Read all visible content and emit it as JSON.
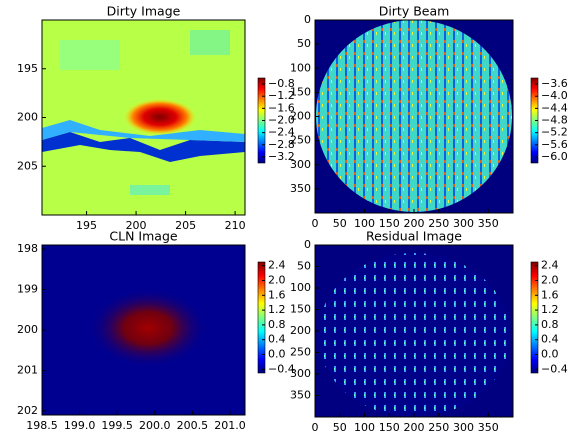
{
  "chart_data": [
    {
      "type": "image",
      "title": "Dirty Image",
      "colormap": "jet",
      "xlim": [
        190.5,
        211
      ],
      "xticks": [
        195,
        200,
        205,
        210
      ],
      "ylim": [
        210,
        190
      ],
      "yticks": [
        195,
        200,
        205
      ],
      "clim": [
        -3.4,
        -0.6
      ],
      "cticks": [
        {
          "value": -0.8,
          "label": "−0.8"
        },
        {
          "value": -1.2,
          "label": "−1.2"
        },
        {
          "value": -1.6,
          "label": "−1.6"
        },
        {
          "value": -2.0,
          "label": "−2.0"
        },
        {
          "value": -2.4,
          "label": "−2.4"
        },
        {
          "value": -2.8,
          "label": "−2.8"
        },
        {
          "value": -3.2,
          "label": "−3.2"
        }
      ]
    },
    {
      "type": "image",
      "title": "Dirty Beam",
      "colormap": "jet",
      "xlim": [
        0,
        400
      ],
      "xticks": [
        0,
        50,
        100,
        150,
        200,
        250,
        300,
        350
      ],
      "ylim": [
        400,
        0
      ],
      "yticks": [
        0,
        50,
        100,
        150,
        200,
        250,
        300,
        350
      ],
      "clim": [
        -6.2,
        -3.4
      ],
      "cticks": [
        {
          "value": -3.6,
          "label": "−3.6"
        },
        {
          "value": -4.0,
          "label": "−4.0"
        },
        {
          "value": -4.4,
          "label": "−4.4"
        },
        {
          "value": -4.8,
          "label": "−4.8"
        },
        {
          "value": -5.2,
          "label": "−5.2"
        },
        {
          "value": -5.6,
          "label": "−5.6"
        },
        {
          "value": -6.0,
          "label": "−6.0"
        }
      ]
    },
    {
      "type": "image",
      "title": "CLN Image",
      "colormap": "jet",
      "xlim": [
        198.5,
        201.2
      ],
      "xticks": [
        198.5,
        {
          "value": 199.0,
          "label": "199.0"
        },
        199.5,
        {
          "value": 200.0,
          "label": "200.0"
        },
        200.5,
        {
          "value": 201.0,
          "label": "201.0"
        }
      ],
      "ylim": [
        202.1,
        197.9
      ],
      "yticks": [
        198,
        199,
        200,
        201,
        202
      ],
      "clim": [
        -0.5,
        2.5
      ],
      "cticks": [
        2.4,
        {
          "value": 2.0,
          "label": "2.0"
        },
        1.6,
        1.2,
        0.8,
        0.4,
        {
          "value": 0.0,
          "label": "0.0"
        },
        {
          "value": -0.4,
          "label": "−0.4"
        }
      ]
    },
    {
      "type": "image",
      "title": "Residual Image",
      "colormap": "jet",
      "xlim": [
        0,
        400
      ],
      "xticks": [
        0,
        50,
        100,
        150,
        200,
        250,
        300,
        350
      ],
      "ylim": [
        400,
        0
      ],
      "yticks": [
        0,
        50,
        100,
        150,
        200,
        250,
        300,
        350
      ],
      "clim": [
        -0.5,
        2.5
      ],
      "cticks": [
        2.4,
        {
          "value": 2.0,
          "label": "2.0"
        },
        1.6,
        1.2,
        0.8,
        0.4,
        {
          "value": 0.0,
          "label": "0.0"
        },
        {
          "value": -0.4,
          "label": "−0.4"
        }
      ]
    }
  ]
}
